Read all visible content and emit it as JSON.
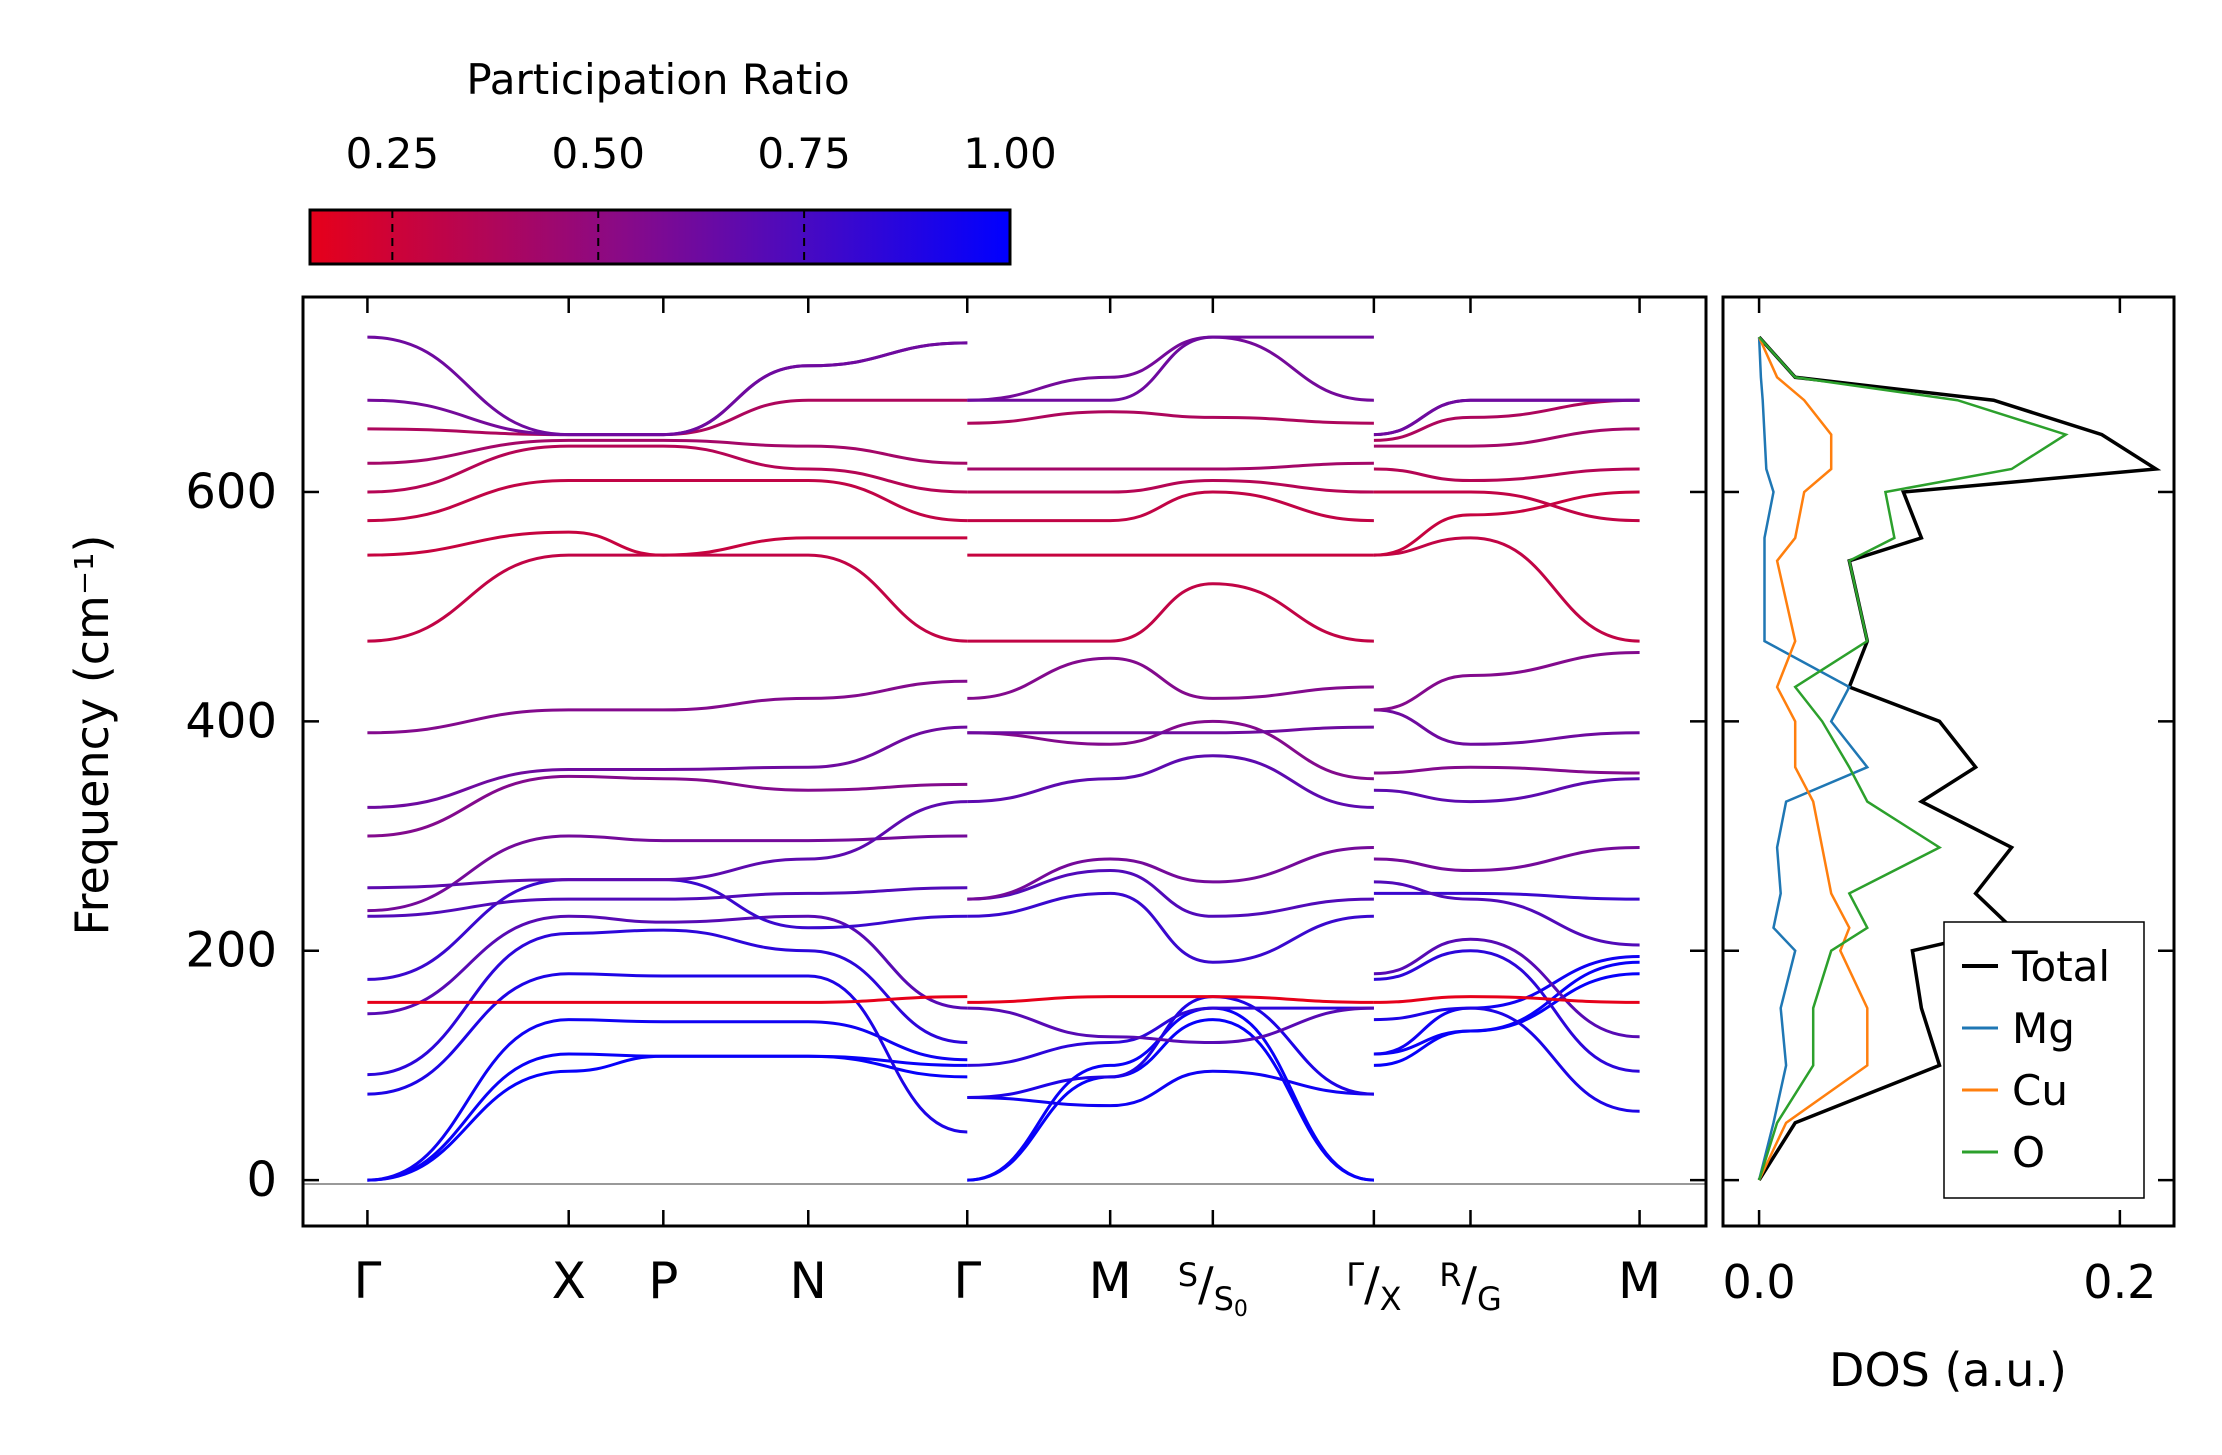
{
  "chart_data": [
    {
      "type": "line",
      "subtype": "phonon-band-structure",
      "title": "",
      "xlabel": "",
      "ylabel": "Frequency (cm⁻¹)",
      "ylim": [
        -40,
        770
      ],
      "y_ticks": [
        0,
        200,
        400,
        600
      ],
      "y_tick_labels": [
        "0",
        "200",
        "400",
        "600"
      ],
      "x_path_labels": [
        {
          "main": "Γ",
          "pos": 0.0
        },
        {
          "main": "X",
          "pos": 1.0
        },
        {
          "main": "P",
          "pos": 1.47
        },
        {
          "main": "N",
          "pos": 2.19
        },
        {
          "main": "Γ",
          "pos": 2.98
        },
        {
          "main": "M",
          "pos": 3.69
        },
        {
          "main": "S",
          "sub": "S",
          "subsub": "0",
          "pos": 4.2
        },
        {
          "main": "Γ",
          "sub": "X",
          "pos": 5.0
        },
        {
          "main": "R",
          "sub": "G",
          "pos": 5.48
        },
        {
          "main": "M",
          "pos": 6.32
        }
      ],
      "x_range": [
        -0.32,
        6.65
      ],
      "segment_breaks": [
        2.98,
        5.0
      ],
      "color_by": "Participation Ratio",
      "bands_description": "Phonon branches 0–735 cm⁻¹; acoustic modes start at 0 at Γ",
      "bands": [
        {
          "f": [
            0,
            95,
            108,
            108,
            90,
            0,
            90,
            140,
            0,
            100,
            130,
            180
          ],
          "pr": 0.98
        },
        {
          "f": [
            0,
            110,
            108,
            108,
            100,
            0,
            100,
            150,
            0,
            110,
            130,
            190
          ],
          "pr": 0.97
        },
        {
          "f": [
            0,
            140,
            138,
            138,
            105,
            72,
            65,
            95,
            75,
            110,
            150,
            195
          ],
          "pr": 0.95
        },
        {
          "f": [
            75,
            180,
            178,
            178,
            42,
            72,
            90,
            160,
            75,
            140,
            150,
            60
          ],
          "pr": 0.9
        },
        {
          "f": [
            92,
            215,
            218,
            200,
            120,
            100,
            120,
            150,
            150,
            175,
            200,
            95
          ],
          "pr": 0.85
        },
        {
          "f": [
            145,
            230,
            225,
            230,
            150,
            150,
            125,
            120,
            150,
            180,
            210,
            125
          ],
          "pr": 0.7
        },
        {
          "f": [
            155,
            155,
            155,
            155,
            160,
            155,
            160,
            160,
            155,
            155,
            160,
            155
          ],
          "pr": 0.1
        },
        {
          "f": [
            175,
            262,
            262,
            220,
            230,
            230,
            250,
            190,
            230,
            250,
            250,
            245
          ],
          "pr": 0.8
        },
        {
          "f": [
            230,
            245,
            245,
            250,
            255,
            245,
            270,
            230,
            245,
            260,
            245,
            205
          ],
          "pr": 0.72
        },
        {
          "f": [
            235,
            300,
            296,
            296,
            300,
            245,
            280,
            260,
            290,
            280,
            270,
            290
          ],
          "pr": 0.6
        },
        {
          "f": [
            255,
            262,
            262,
            280,
            330,
            330,
            350,
            370,
            325,
            340,
            330,
            350
          ],
          "pr": 0.68
        },
        {
          "f": [
            300,
            352,
            350,
            340,
            345,
            390,
            380,
            400,
            350,
            355,
            360,
            355
          ],
          "pr": 0.55
        },
        {
          "f": [
            325,
            358,
            358,
            360,
            395,
            390,
            390,
            390,
            395,
            410,
            380,
            390
          ],
          "pr": 0.62
        },
        {
          "f": [
            390,
            410,
            410,
            420,
            435,
            420,
            455,
            420,
            430,
            410,
            440,
            460
          ],
          "pr": 0.55
        },
        {
          "f": [
            470,
            545,
            545,
            545,
            470,
            470,
            470,
            520,
            470,
            545,
            560,
            470
          ],
          "pr": 0.3
        },
        {
          "f": [
            545,
            565,
            545,
            560,
            560,
            545,
            545,
            545,
            545,
            545,
            580,
            600
          ],
          "pr": 0.28
        },
        {
          "f": [
            575,
            610,
            610,
            610,
            575,
            575,
            575,
            600,
            575,
            600,
            600,
            575
          ],
          "pr": 0.3
        },
        {
          "f": [
            600,
            640,
            640,
            620,
            600,
            600,
            600,
            610,
            600,
            620,
            610,
            620
          ],
          "pr": 0.35
        },
        {
          "f": [
            625,
            645,
            645,
            640,
            625,
            620,
            620,
            620,
            625,
            640,
            640,
            655
          ],
          "pr": 0.42
        },
        {
          "f": [
            655,
            650,
            650,
            680,
            680,
            660,
            670,
            665,
            660,
            645,
            665,
            680
          ],
          "pr": 0.38
        },
        {
          "f": [
            680,
            650,
            650,
            710,
            730,
            680,
            700,
            735,
            680,
            650,
            680,
            680
          ],
          "pr": 0.6
        },
        {
          "f": [
            735,
            650,
            650,
            710,
            730,
            680,
            680,
            735,
            735,
            650,
            680,
            680
          ],
          "pr": 0.62
        }
      ]
    },
    {
      "type": "line",
      "subtype": "density-of-states",
      "title": "",
      "xlabel": "DOS (a.u.)",
      "ylabel": "",
      "xlim": [
        -0.02,
        0.23
      ],
      "ylim": [
        -40,
        770
      ],
      "x_ticks": [
        0.0,
        0.2
      ],
      "x_tick_labels": [
        "0.0",
        "0.2"
      ],
      "legend": {
        "position": "lower-right",
        "entries": [
          "Total",
          "Mg",
          "Cu",
          "O"
        ]
      },
      "series": [
        {
          "name": "Total",
          "color": "#000000",
          "y": [
            0,
            50,
            100,
            150,
            200,
            220,
            250,
            290,
            330,
            360,
            400,
            430,
            470,
            540,
            560,
            600,
            620,
            650,
            680,
            700,
            735
          ],
          "values": [
            0,
            0.02,
            0.1,
            0.09,
            0.085,
            0.14,
            0.12,
            0.14,
            0.09,
            0.12,
            0.1,
            0.05,
            0.06,
            0.05,
            0.09,
            0.08,
            0.22,
            0.19,
            0.13,
            0.02,
            0.0
          ]
        },
        {
          "name": "Mg",
          "color": "#1f77b4",
          "y": [
            0,
            50,
            100,
            150,
            200,
            220,
            250,
            290,
            330,
            360,
            400,
            430,
            470,
            540,
            560,
            600,
            620,
            650,
            680,
            700,
            735
          ],
          "values": [
            0,
            0.008,
            0.015,
            0.012,
            0.02,
            0.008,
            0.012,
            0.01,
            0.015,
            0.06,
            0.04,
            0.05,
            0.003,
            0.003,
            0.003,
            0.008,
            0.004,
            0.003,
            0.002,
            0.001,
            0
          ]
        },
        {
          "name": "Cu",
          "color": "#ff7f0e",
          "y": [
            0,
            50,
            100,
            150,
            200,
            220,
            250,
            290,
            330,
            360,
            400,
            430,
            470,
            540,
            560,
            600,
            620,
            650,
            680,
            700,
            735
          ],
          "values": [
            0,
            0.015,
            0.06,
            0.06,
            0.045,
            0.05,
            0.04,
            0.035,
            0.03,
            0.02,
            0.02,
            0.01,
            0.02,
            0.01,
            0.02,
            0.025,
            0.04,
            0.04,
            0.025,
            0.01,
            0
          ]
        },
        {
          "name": "O",
          "color": "#2ca02c",
          "y": [
            0,
            50,
            100,
            150,
            200,
            220,
            250,
            290,
            330,
            360,
            400,
            430,
            470,
            540,
            560,
            600,
            620,
            650,
            680,
            700,
            735
          ],
          "values": [
            0,
            0.01,
            0.03,
            0.03,
            0.04,
            0.06,
            0.05,
            0.1,
            0.06,
            0.05,
            0.035,
            0.02,
            0.06,
            0.05,
            0.075,
            0.07,
            0.14,
            0.17,
            0.11,
            0.02,
            0
          ]
        }
      ]
    },
    {
      "type": "heatmap",
      "subtype": "colorbar",
      "title": "Participation Ratio",
      "range": [
        0.15,
        1.0
      ],
      "ticks": [
        0.25,
        0.5,
        0.75,
        1.0
      ],
      "tick_labels": [
        "0.25",
        "0.50",
        "0.75",
        "1.00"
      ],
      "color_low": "#e6001a",
      "color_mid": "#7a0aa0",
      "color_high": "#0000ff"
    }
  ]
}
